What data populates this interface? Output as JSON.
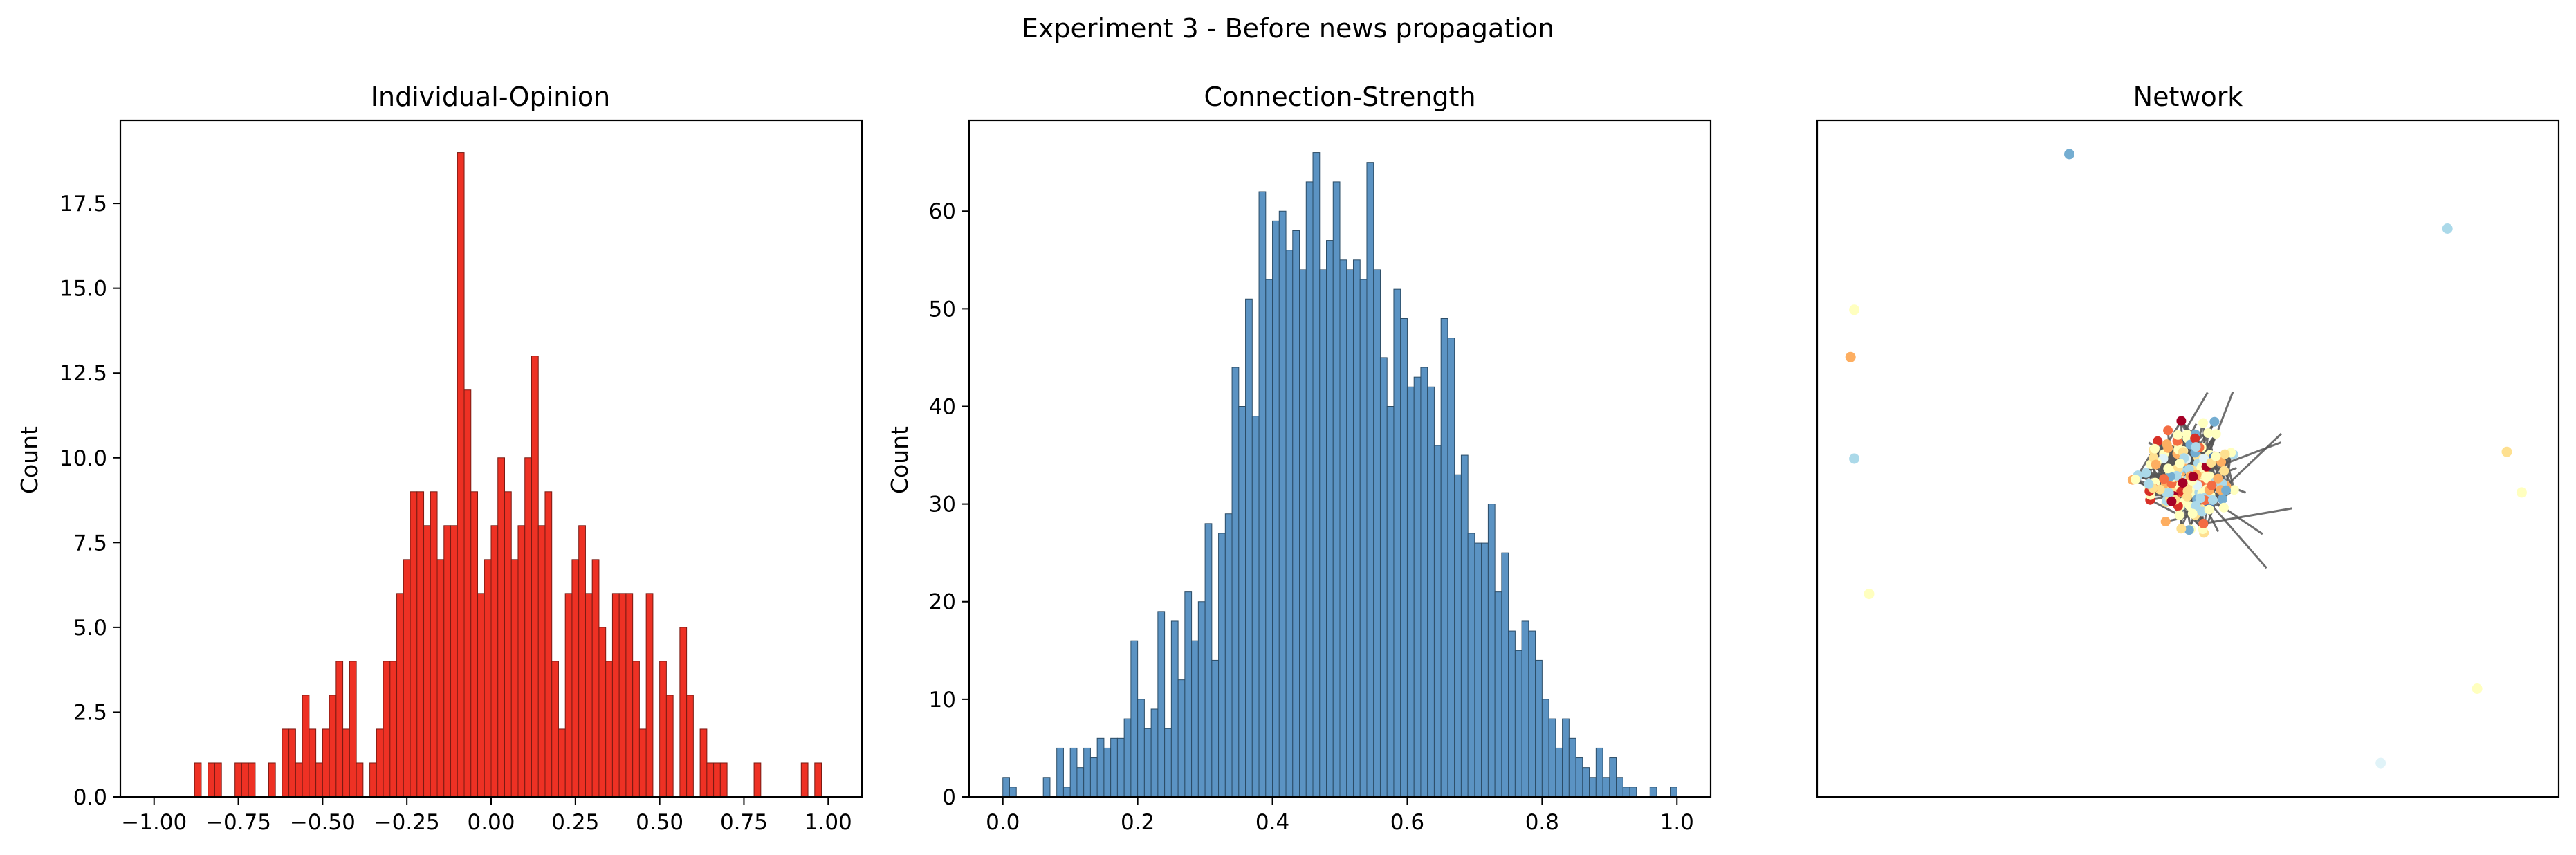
{
  "figure": {
    "suptitle": "Experiment 3 - Before news propagation"
  },
  "chart_data": [
    {
      "type": "bar",
      "subtype": "histogram",
      "title": "Individual-Opinion",
      "xlabel": "",
      "ylabel": "Count",
      "color": "#ee3124",
      "edge_color": "#7a1a12",
      "xlim": [
        -1.1,
        1.1
      ],
      "ylim": [
        0,
        19.95
      ],
      "xticks": [
        -1.0,
        -0.75,
        -0.5,
        -0.25,
        0.0,
        0.25,
        0.5,
        0.75,
        1.0
      ],
      "xtick_labels": [
        "−1.00",
        "−0.75",
        "−0.50",
        "−0.25",
        "0.00",
        "0.25",
        "0.50",
        "0.75",
        "1.00"
      ],
      "yticks": [
        0,
        2.5,
        5,
        7.5,
        10,
        12.5,
        15,
        17.5
      ],
      "ytick_labels": [
        "0.0",
        "2.5",
        "5.0",
        "7.5",
        "10.0",
        "12.5",
        "15.0",
        "17.5"
      ],
      "bin_start": -1.0,
      "bin_width": 0.02,
      "counts": [
        0,
        0,
        0,
        0,
        0,
        0,
        1,
        0,
        1,
        1,
        0,
        0,
        1,
        1,
        1,
        0,
        0,
        1,
        0,
        2,
        2,
        1,
        3,
        2,
        1,
        2,
        3,
        4,
        2,
        4,
        1,
        0,
        1,
        2,
        4,
        4,
        6,
        7,
        9,
        9,
        8,
        9,
        7,
        8,
        8,
        19,
        12,
        9,
        6,
        7,
        8,
        10,
        9,
        7,
        8,
        10,
        13,
        8,
        9,
        4,
        2,
        6,
        7,
        8,
        6,
        7,
        5,
        4,
        6,
        6,
        6,
        4,
        2,
        6,
        0,
        4,
        3,
        0,
        5,
        3,
        0,
        2,
        1,
        1,
        1,
        0,
        0,
        0,
        0,
        1,
        0,
        0,
        0,
        0,
        0,
        0,
        1,
        0,
        1,
        0
      ]
    },
    {
      "type": "bar",
      "subtype": "histogram",
      "title": "Connection-Strength",
      "xlabel": "",
      "ylabel": "Count",
      "color": "#5b93c3",
      "edge_color": "#2b4c66",
      "xlim": [
        -0.05,
        1.05
      ],
      "ylim": [
        0,
        69.3
      ],
      "xticks": [
        0.0,
        0.2,
        0.4,
        0.6,
        0.8,
        1.0
      ],
      "xtick_labels": [
        "0.0",
        "0.2",
        "0.4",
        "0.6",
        "0.8",
        "1.0"
      ],
      "yticks": [
        0,
        10,
        20,
        30,
        40,
        50,
        60
      ],
      "ytick_labels": [
        "0",
        "10",
        "20",
        "30",
        "40",
        "50",
        "60"
      ],
      "bin_start": 0.0,
      "bin_width": 0.01,
      "counts": [
        2,
        1,
        0,
        0,
        0,
        0,
        2,
        0,
        5,
        1,
        5,
        3,
        5,
        4,
        6,
        5,
        6,
        6,
        8,
        16,
        10,
        7,
        9,
        19,
        7,
        18,
        12,
        21,
        16,
        20,
        28,
        14,
        27,
        29,
        44,
        40,
        51,
        39,
        62,
        53,
        59,
        60,
        56,
        58,
        54,
        63,
        66,
        54,
        57,
        63,
        55,
        54,
        55,
        53,
        65,
        54,
        45,
        40,
        52,
        49,
        42,
        43,
        44,
        42,
        36,
        49,
        47,
        33,
        35,
        27,
        26,
        26,
        30,
        21,
        25,
        17,
        15,
        18,
        17,
        14,
        10,
        8,
        5,
        8,
        6,
        4,
        3,
        2,
        5,
        2,
        4,
        2,
        1,
        1,
        0,
        0,
        1,
        0,
        0,
        1
      ]
    },
    {
      "type": "scatter",
      "subtype": "network",
      "title": "Network",
      "xlabel": "",
      "ylabel": "",
      "edge_color": "#555555",
      "palette": [
        "#313695",
        "#4575b4",
        "#74add1",
        "#abd9e9",
        "#e0f3f8",
        "#ffffbf",
        "#fee090",
        "#fdae61",
        "#f46d43",
        "#d73027",
        "#a50026"
      ],
      "outlier_nodes": [
        {
          "x": 0.34,
          "y": 0.95,
          "c": "#74add1"
        },
        {
          "x": 0.85,
          "y": 0.84,
          "c": "#abd9e9"
        },
        {
          "x": 0.05,
          "y": 0.72,
          "c": "#ffffbf"
        },
        {
          "x": 0.045,
          "y": 0.65,
          "c": "#fdae61"
        },
        {
          "x": 0.05,
          "y": 0.5,
          "c": "#abd9e9"
        },
        {
          "x": 0.93,
          "y": 0.51,
          "c": "#fee090"
        },
        {
          "x": 0.95,
          "y": 0.45,
          "c": "#ffffbf"
        },
        {
          "x": 0.07,
          "y": 0.3,
          "c": "#ffffbf"
        },
        {
          "x": 0.89,
          "y": 0.16,
          "c": "#ffffbf"
        },
        {
          "x": 0.76,
          "y": 0.05,
          "c": "#e0f3f8"
        }
      ]
    }
  ]
}
